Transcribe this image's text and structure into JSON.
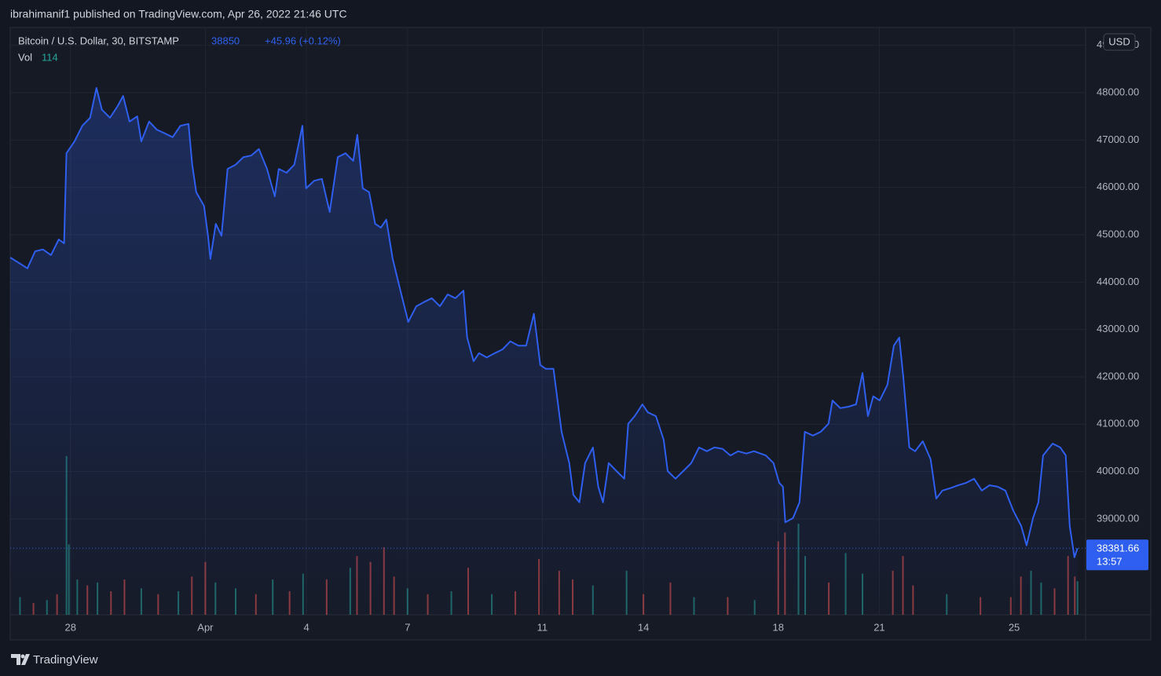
{
  "header": {
    "published": "ibrahimanif1 published on TradingView.com, Apr 26, 2022 21:46 UTC"
  },
  "chart_data": {
    "type": "area",
    "title": "Bitcoin / U.S. Dollar, 30, BITSTAMP",
    "change": "+45.96 (+0.12%)",
    "currency": "USD",
    "countdown": "13:57",
    "volume_label": "Vol",
    "xlim": [
      26.21,
      58.12
    ],
    "ylim": [
      36977,
      49376
    ],
    "grid": true,
    "xticks": [
      28,
      {
        "value": 32,
        "label": "Apr"
      },
      {
        "value": 35,
        "label": "4"
      },
      {
        "value": 38,
        "label": "7"
      },
      {
        "value": 42,
        "label": "11"
      },
      {
        "value": 45,
        "label": "14"
      },
      {
        "value": 49,
        "label": "18"
      },
      {
        "value": 52,
        "label": "21"
      },
      {
        "value": 56,
        "label": "25"
      }
    ],
    "yticks": [
      {
        "value": 39000,
        "label": "39000.00"
      },
      {
        "value": 40000,
        "label": "40000.00"
      },
      {
        "value": 41000,
        "label": "41000.00"
      },
      {
        "value": 42000,
        "label": "42000.00"
      },
      {
        "value": 43000,
        "label": "43000.00"
      },
      {
        "value": 44000,
        "label": "44000.00"
      },
      {
        "value": 45000,
        "label": "45000.00"
      },
      {
        "value": 46000,
        "label": "46000.00"
      },
      {
        "value": 47000,
        "label": "47000.00"
      },
      {
        "value": 48000,
        "label": "48000.00"
      },
      {
        "value": 49000,
        "label": "49000.00"
      }
    ],
    "series": [
      {
        "name": "BTCUSD",
        "color": "#2f5ff0",
        "x": [
          26.21,
          26.48,
          26.72,
          26.95,
          27.18,
          27.42,
          27.65,
          27.81,
          27.88,
          28.12,
          28.35,
          28.58,
          28.77,
          28.93,
          29.17,
          29.4,
          29.56,
          29.75,
          29.98,
          30.1,
          30.33,
          30.56,
          30.8,
          31.03,
          31.26,
          31.5,
          31.61,
          31.73,
          31.96,
          32.08,
          32.15,
          32.31,
          32.48,
          32.66,
          32.9,
          33.13,
          33.36,
          33.59,
          33.83,
          34.06,
          34.18,
          34.41,
          34.64,
          34.88,
          34.99,
          35.23,
          35.46,
          35.69,
          35.93,
          36.16,
          36.39,
          36.51,
          36.67,
          36.86,
          37.04,
          37.21,
          37.37,
          37.56,
          37.79,
          38.02,
          38.26,
          38.49,
          38.72,
          38.96,
          39.19,
          39.42,
          39.66,
          39.77,
          39.96,
          40.12,
          40.35,
          40.59,
          40.82,
          41.05,
          41.29,
          41.52,
          41.75,
          41.94,
          42.1,
          42.33,
          42.57,
          42.8,
          42.92,
          43.1,
          43.27,
          43.5,
          43.66,
          43.8,
          43.97,
          44.2,
          44.43,
          44.55,
          44.74,
          44.97,
          45.13,
          45.37,
          45.6,
          45.72,
          45.95,
          46.18,
          46.42,
          46.65,
          46.88,
          47.11,
          47.35,
          47.58,
          47.81,
          48.05,
          48.28,
          48.63,
          48.86,
          49.03,
          49.14,
          49.21,
          49.44,
          49.63,
          49.79,
          50.03,
          50.26,
          50.49,
          50.61,
          50.84,
          51.08,
          51.31,
          51.5,
          51.66,
          51.82,
          52.01,
          52.24,
          52.43,
          52.59,
          52.71,
          52.89,
          53.06,
          53.29,
          53.52,
          53.69,
          53.87,
          54.11,
          54.34,
          54.57,
          54.81,
          55.04,
          55.27,
          55.51,
          55.74,
          55.97,
          56.21,
          56.37,
          56.56,
          56.72,
          56.86,
          57.14,
          57.37,
          57.53,
          57.65,
          57.79,
          57.88
        ],
        "values": [
          44520,
          44400,
          44290,
          44650,
          44690,
          44570,
          44900,
          44820,
          46720,
          46970,
          47300,
          47470,
          48100,
          47640,
          47470,
          47720,
          47930,
          47390,
          47500,
          46970,
          47390,
          47220,
          47140,
          47060,
          47300,
          47340,
          46480,
          45900,
          45610,
          44980,
          44490,
          45230,
          44980,
          46390,
          46480,
          46640,
          46670,
          46810,
          46390,
          45810,
          46390,
          46310,
          46480,
          47300,
          45980,
          46140,
          46180,
          45480,
          46640,
          46720,
          46560,
          47110,
          45980,
          45900,
          45230,
          45150,
          45320,
          44490,
          43820,
          43160,
          43490,
          43580,
          43660,
          43490,
          43740,
          43660,
          43820,
          42830,
          42330,
          42500,
          42410,
          42500,
          42580,
          42750,
          42660,
          42660,
          43330,
          42250,
          42170,
          42170,
          40840,
          40180,
          39510,
          39350,
          40180,
          40510,
          39680,
          39350,
          40180,
          40010,
          39850,
          41010,
          41170,
          41420,
          41250,
          41170,
          40670,
          40010,
          39850,
          40010,
          40180,
          40510,
          40430,
          40510,
          40480,
          40340,
          40430,
          40380,
          40430,
          40340,
          40180,
          39760,
          39680,
          38930,
          39020,
          39350,
          40840,
          40760,
          40840,
          41010,
          41500,
          41340,
          41370,
          41420,
          42080,
          41170,
          41590,
          41500,
          41830,
          42660,
          42830,
          42000,
          40510,
          40430,
          40640,
          40260,
          39430,
          39600,
          39650,
          39710,
          39760,
          39850,
          39600,
          39710,
          39680,
          39600,
          39180,
          38850,
          38440,
          39020,
          39350,
          40340,
          40590,
          40510,
          40340,
          38850,
          38190,
          38381.66
        ]
      }
    ],
    "volume": {
      "ylim": [
        0,
        2000
      ],
      "x": [
        26.5,
        26.9,
        27.3,
        27.6,
        27.88,
        27.95,
        28.2,
        28.5,
        28.8,
        29.2,
        29.6,
        30.1,
        30.6,
        31.2,
        31.6,
        32.0,
        32.3,
        32.9,
        33.5,
        34.0,
        34.5,
        34.9,
        35.6,
        36.3,
        36.5,
        36.9,
        37.3,
        37.6,
        38.0,
        38.6,
        39.3,
        39.8,
        40.5,
        41.2,
        41.9,
        42.5,
        42.9,
        43.5,
        44.5,
        45.0,
        45.8,
        46.5,
        47.5,
        48.3,
        49.0,
        49.2,
        49.6,
        49.8,
        50.5,
        51.0,
        51.5,
        52.4,
        52.7,
        53.0,
        54.0,
        55.0,
        55.9,
        56.2,
        56.5,
        56.8,
        57.2,
        57.6,
        57.8,
        57.88
      ],
      "values": [
        60,
        40,
        50,
        70,
        540,
        240,
        120,
        100,
        110,
        80,
        120,
        90,
        70,
        80,
        130,
        180,
        110,
        90,
        70,
        120,
        80,
        140,
        120,
        160,
        200,
        180,
        230,
        130,
        90,
        70,
        80,
        160,
        70,
        80,
        190,
        150,
        120,
        100,
        150,
        70,
        110,
        60,
        60,
        50,
        250,
        280,
        310,
        200,
        110,
        210,
        140,
        150,
        200,
        100,
        70,
        60,
        60,
        130,
        150,
        110,
        90,
        200,
        130,
        114
      ],
      "colors": [
        "#26a69a",
        "#ef5350",
        "#26a69a",
        "#ef5350",
        "#26a69a",
        "#26a69a",
        "#26a69a",
        "#ef5350",
        "#26a69a",
        "#ef5350",
        "#ef5350",
        "#26a69a",
        "#ef5350",
        "#26a69a",
        "#ef5350",
        "#ef5350",
        "#26a69a",
        "#26a69a",
        "#ef5350",
        "#26a69a",
        "#ef5350",
        "#26a69a",
        "#ef5350",
        "#26a69a",
        "#ef5350",
        "#ef5350",
        "#ef5350",
        "#ef5350",
        "#26a69a",
        "#ef5350",
        "#26a69a",
        "#ef5350",
        "#26a69a",
        "#ef5350",
        "#ef5350",
        "#ef5350",
        "#ef5350",
        "#26a69a",
        "#26a69a",
        "#ef5350",
        "#ef5350",
        "#26a69a",
        "#ef5350",
        "#26a69a",
        "#ef5350",
        "#ef5350",
        "#26a69a",
        "#26a69a",
        "#ef5350",
        "#26a69a",
        "#26a69a",
        "#ef5350",
        "#ef5350",
        "#ef5350",
        "#26a69a",
        "#ef5350",
        "#ef5350",
        "#ef5350",
        "#26a69a",
        "#26a69a",
        "#ef5350",
        "#ef5350",
        "#ef5350",
        "#26a69a"
      ]
    }
  },
  "footer": {
    "logo": "TradingView"
  }
}
